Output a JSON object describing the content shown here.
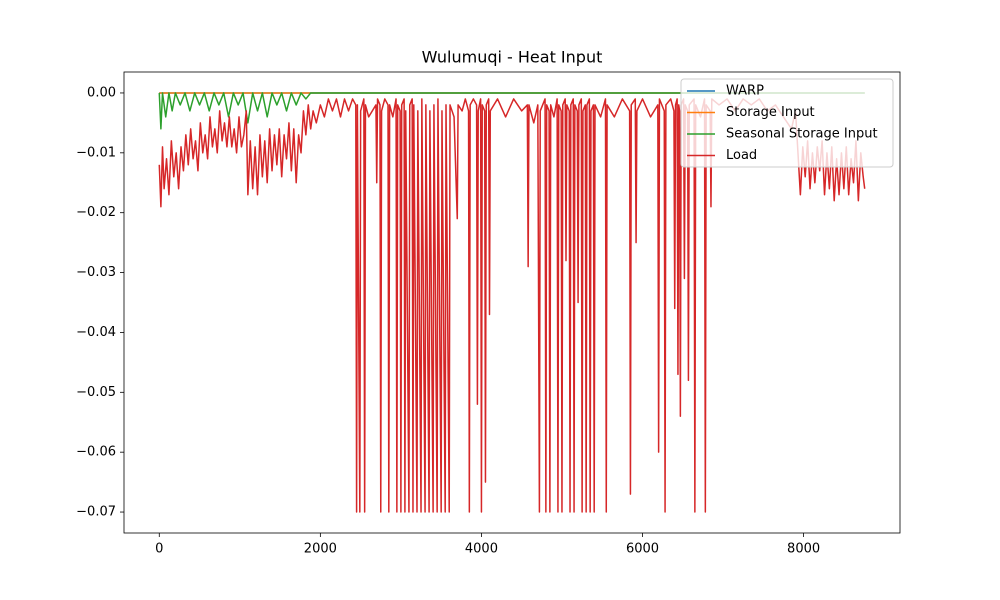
{
  "chart_data": {
    "type": "line",
    "title": "Wulumuqi - Heat Input",
    "xlim": [
      -438,
      9197
    ],
    "ylim": [
      -0.0735,
      0.0035
    ],
    "xticks": [
      0,
      2000,
      4000,
      6000,
      8000
    ],
    "yticks": [
      {
        "value": 0,
        "label": "0.00"
      },
      {
        "value": -0.01,
        "label": "−0.01"
      },
      {
        "value": -0.02,
        "label": "−0.02"
      },
      {
        "value": -0.03,
        "label": "−0.03"
      },
      {
        "value": -0.04,
        "label": "−0.04"
      },
      {
        "value": -0.05,
        "label": "−0.05"
      },
      {
        "value": -0.06,
        "label": "−0.06"
      },
      {
        "value": -0.07,
        "label": "−0.07"
      }
    ],
    "legend": "upper right",
    "series": [
      {
        "name": "WARP",
        "color": "#1f77b4",
        "x": [
          0,
          8759
        ],
        "values": [
          0,
          0
        ]
      },
      {
        "name": "Storage Input",
        "color": "#ff7f0e",
        "x": [
          0,
          8759
        ],
        "values": [
          0,
          0
        ]
      },
      {
        "name": "Seasonal Storage Input",
        "color": "#2ca02c",
        "x": [
          0,
          20,
          40,
          80,
          120,
          160,
          200,
          260,
          320,
          380,
          440,
          500,
          560,
          620,
          680,
          740,
          800,
          860,
          920,
          980,
          1040,
          1100,
          1160,
          1220,
          1280,
          1340,
          1400,
          1460,
          1520,
          1580,
          1640,
          1700,
          1760,
          1820,
          1880,
          1950,
          8759
        ],
        "values": [
          0,
          -0.006,
          0,
          -0.004,
          0,
          -0.003,
          0,
          -0.002,
          0,
          -0.003,
          0,
          -0.002,
          0,
          -0.003,
          0,
          -0.002,
          0,
          -0.004,
          0,
          -0.002,
          0,
          -0.005,
          0,
          -0.003,
          0,
          -0.004,
          0,
          -0.002,
          0,
          -0.003,
          0,
          -0.002,
          0,
          -0.001,
          0,
          0,
          0
        ]
      },
      {
        "name": "Load",
        "color": "#d62728",
        "x": [
          0,
          20,
          40,
          60,
          90,
          120,
          150,
          180,
          210,
          240,
          270,
          300,
          330,
          360,
          390,
          420,
          450,
          480,
          510,
          540,
          570,
          600,
          630,
          660,
          690,
          720,
          750,
          780,
          810,
          840,
          870,
          900,
          930,
          960,
          990,
          1020,
          1050,
          1080,
          1100,
          1130,
          1160,
          1190,
          1220,
          1250,
          1280,
          1310,
          1340,
          1370,
          1400,
          1430,
          1460,
          1490,
          1520,
          1550,
          1580,
          1610,
          1640,
          1670,
          1700,
          1730,
          1760,
          1790,
          1820,
          1850,
          1880,
          1910,
          1950,
          2000,
          2050,
          2100,
          2150,
          2200,
          2250,
          2300,
          2350,
          2400,
          2440,
          2450,
          2460,
          2490,
          2500,
          2540,
          2550,
          2560,
          2600,
          2690,
          2700,
          2710,
          2740,
          2750,
          2760,
          2800,
          2840,
          2850,
          2860,
          2900,
          2940,
          2950,
          2960,
          2990,
          3000,
          3010,
          3040,
          3050,
          3060,
          3100,
          3110,
          3140,
          3150,
          3160,
          3200,
          3210,
          3250,
          3260,
          3300,
          3310,
          3350,
          3360,
          3400,
          3410,
          3450,
          3460,
          3500,
          3510,
          3550,
          3560,
          3600,
          3610,
          3660,
          3700,
          3710,
          3760,
          3800,
          3840,
          3850,
          3860,
          3900,
          3940,
          3950,
          3960,
          3990,
          4000,
          4010,
          4040,
          4050,
          4060,
          4090,
          4100,
          4110,
          4200,
          4300,
          4400,
          4500,
          4570,
          4580,
          4590,
          4650,
          4700,
          4720,
          4730,
          4790,
          4800,
          4810,
          4840,
          4850,
          4860,
          4900,
          4940,
          4950,
          4960,
          4990,
          5000,
          5010,
          5040,
          5050,
          5060,
          5090,
          5100,
          5110,
          5140,
          5150,
          5160,
          5190,
          5200,
          5210,
          5240,
          5250,
          5260,
          5290,
          5300,
          5310,
          5340,
          5350,
          5360,
          5390,
          5400,
          5410,
          5480,
          5540,
          5550,
          5560,
          5650,
          5750,
          5840,
          5850,
          5860,
          5910,
          5920,
          5930,
          6000,
          6100,
          6190,
          6200,
          6210,
          6270,
          6280,
          6290,
          6350,
          6390,
          6400,
          6410,
          6430,
          6440,
          6450,
          6460,
          6470,
          6480,
          6510,
          6520,
          6530,
          6560,
          6570,
          6580,
          6640,
          6650,
          6660,
          6720,
          6770,
          6780,
          6790,
          6840,
          6850,
          6860,
          6950,
          7050,
          7150,
          7250,
          7350,
          7450,
          7550,
          7650,
          7750,
          7850,
          7900,
          7930,
          7960,
          7990,
          8020,
          8050,
          8080,
          8110,
          8140,
          8170,
          8200,
          8230,
          8260,
          8290,
          8320,
          8350,
          8380,
          8410,
          8440,
          8470,
          8500,
          8530,
          8560,
          8590,
          8620,
          8650,
          8680,
          8710,
          8740,
          8759
        ],
        "values": [
          -0.012,
          -0.019,
          -0.009,
          -0.016,
          -0.011,
          -0.017,
          -0.008,
          -0.014,
          -0.01,
          -0.016,
          -0.009,
          -0.013,
          -0.007,
          -0.012,
          -0.006,
          -0.011,
          -0.008,
          -0.013,
          -0.005,
          -0.01,
          -0.007,
          -0.011,
          -0.004,
          -0.009,
          -0.006,
          -0.01,
          -0.003,
          -0.008,
          -0.005,
          -0.009,
          -0.004,
          -0.009,
          -0.006,
          -0.01,
          -0.004,
          -0.009,
          -0.007,
          -0.003,
          -0.017,
          -0.008,
          -0.016,
          -0.009,
          -0.017,
          -0.007,
          -0.014,
          -0.008,
          -0.015,
          -0.006,
          -0.013,
          -0.007,
          -0.012,
          -0.006,
          -0.014,
          -0.007,
          -0.011,
          -0.005,
          -0.013,
          -0.006,
          -0.015,
          -0.007,
          -0.01,
          -0.003,
          -0.007,
          -0.002,
          -0.006,
          -0.003,
          -0.005,
          -0.002,
          -0.004,
          -0.001,
          -0.003,
          -0.001,
          -0.004,
          -0.001,
          -0.003,
          -0.001,
          -0.002,
          -0.07,
          -0.002,
          -0.07,
          -0.003,
          -0.001,
          -0.07,
          -0.002,
          -0.004,
          -0.002,
          -0.015,
          -0.001,
          -0.002,
          -0.07,
          -0.003,
          -0.001,
          -0.002,
          -0.07,
          -0.002,
          -0.004,
          -0.001,
          -0.07,
          -0.002,
          -0.003,
          -0.07,
          -0.002,
          -0.001,
          -0.07,
          -0.003,
          -0.07,
          -0.002,
          -0.001,
          -0.07,
          -0.002,
          -0.07,
          -0.003,
          -0.07,
          -0.001,
          -0.07,
          -0.002,
          -0.07,
          -0.003,
          -0.07,
          -0.002,
          -0.07,
          -0.001,
          -0.07,
          -0.003,
          -0.07,
          -0.002,
          -0.07,
          -0.002,
          -0.004,
          -0.021,
          -0.002,
          -0.003,
          -0.001,
          -0.003,
          -0.07,
          -0.002,
          -0.001,
          -0.002,
          -0.052,
          -0.003,
          -0.001,
          -0.07,
          -0.002,
          -0.003,
          -0.065,
          -0.002,
          -0.001,
          -0.037,
          -0.003,
          -0.001,
          -0.004,
          -0.001,
          -0.003,
          -0.002,
          -0.029,
          -0.002,
          -0.005,
          -0.002,
          -0.07,
          -0.003,
          -0.001,
          -0.07,
          -0.002,
          -0.003,
          -0.07,
          -0.002,
          -0.004,
          -0.001,
          -0.07,
          -0.002,
          -0.003,
          -0.07,
          -0.002,
          -0.001,
          -0.028,
          -0.002,
          -0.003,
          -0.07,
          -0.002,
          -0.001,
          -0.07,
          -0.002,
          -0.003,
          -0.035,
          -0.002,
          -0.001,
          -0.07,
          -0.003,
          -0.002,
          -0.07,
          -0.002,
          -0.001,
          -0.07,
          -0.003,
          -0.002,
          -0.07,
          -0.002,
          -0.004,
          -0.001,
          -0.07,
          -0.002,
          -0.004,
          -0.001,
          -0.003,
          -0.067,
          -0.002,
          -0.001,
          -0.025,
          -0.003,
          -0.001,
          -0.004,
          -0.002,
          -0.06,
          -0.001,
          -0.003,
          -0.07,
          -0.002,
          -0.001,
          -0.003,
          -0.036,
          -0.002,
          -0.001,
          -0.047,
          -0.002,
          -0.003,
          -0.054,
          -0.002,
          -0.001,
          -0.031,
          -0.002,
          -0.003,
          -0.048,
          -0.002,
          -0.001,
          -0.07,
          -0.002,
          -0.004,
          -0.001,
          -0.07,
          -0.002,
          -0.003,
          -0.019,
          -0.001,
          -0.002,
          -0.001,
          -0.003,
          -0.001,
          -0.002,
          -0.001,
          -0.003,
          -0.002,
          -0.004,
          -0.006,
          -0.003,
          -0.01,
          -0.017,
          -0.009,
          -0.014,
          -0.008,
          -0.016,
          -0.01,
          -0.015,
          -0.009,
          -0.013,
          -0.008,
          -0.017,
          -0.01,
          -0.016,
          -0.009,
          -0.018,
          -0.011,
          -0.017,
          -0.01,
          -0.016,
          -0.009,
          -0.017,
          -0.011,
          -0.015,
          -0.008,
          -0.018,
          -0.01,
          -0.014,
          -0.016
        ]
      }
    ]
  }
}
